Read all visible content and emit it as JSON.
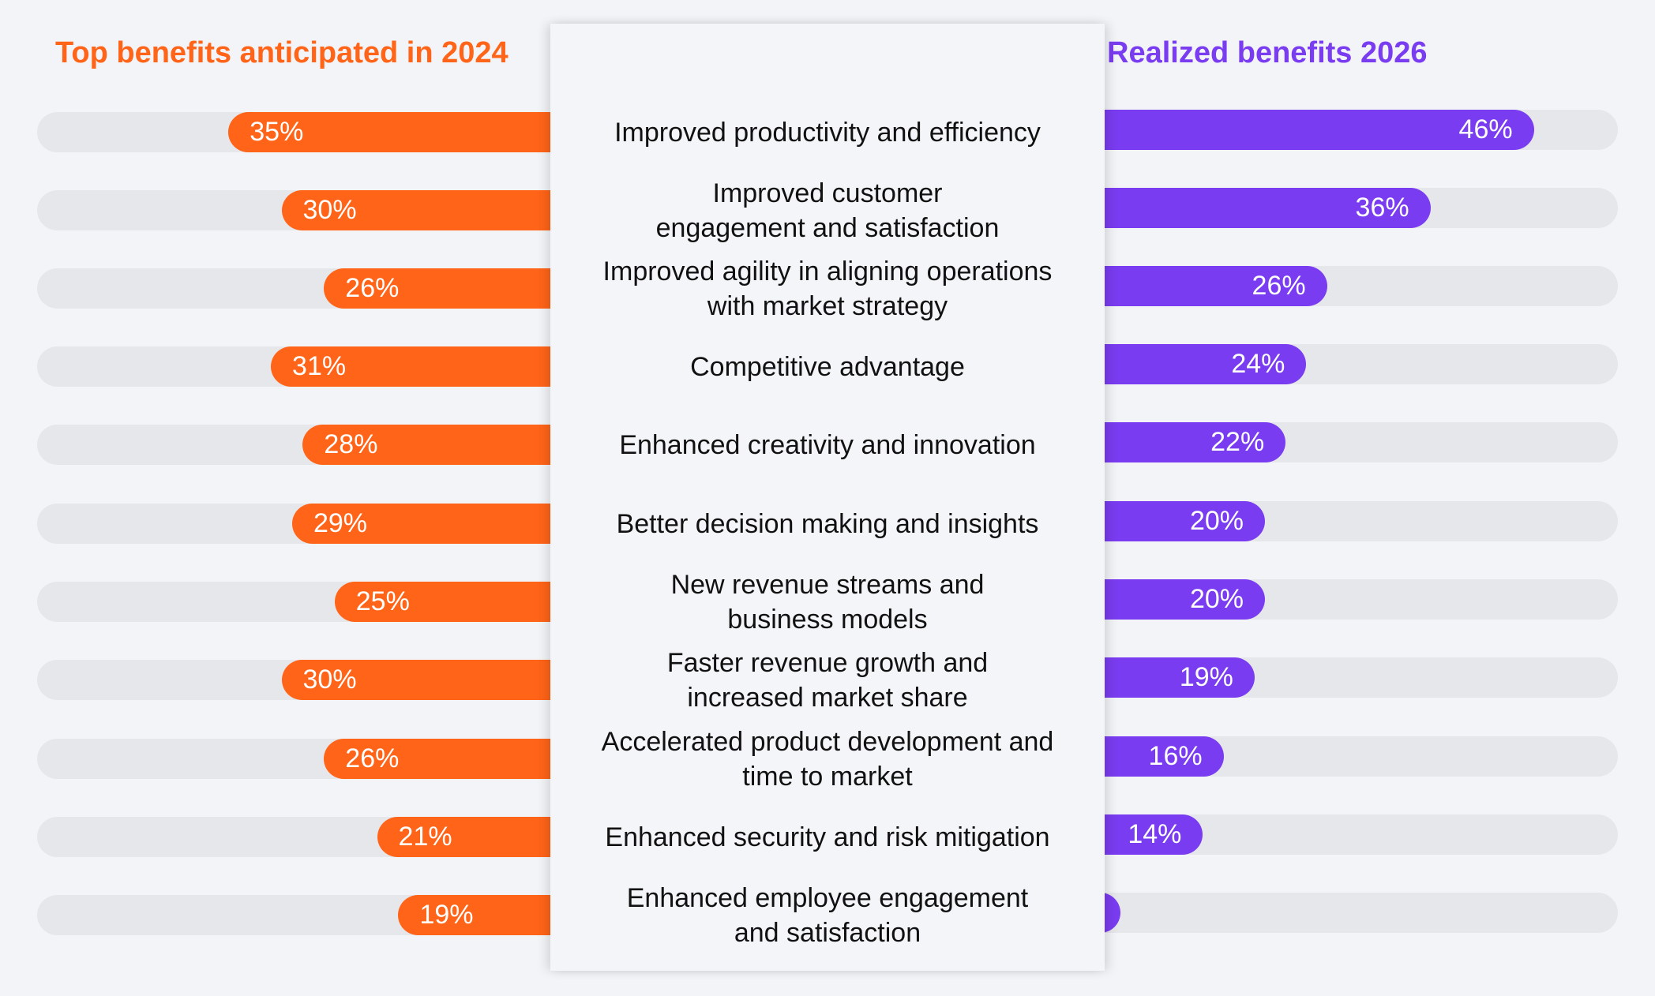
{
  "chart_data": {
    "type": "bar",
    "categories": [
      "Improved productivity and efficiency",
      "Improved customer\nengagement and satisfaction",
      "Improved agility in aligning operations\nwith market strategy",
      "Competitive advantage",
      "Enhanced creativity and innovation",
      "Better decision making and insights",
      "New revenue streams and\nbusiness models",
      "Faster revenue growth and\nincreased market share",
      "Accelerated product development and\ntime to market",
      "Enhanced security and risk mitigation",
      "Enhanced employee engagement\nand satisfaction"
    ],
    "series": [
      {
        "name": "Top benefits anticipated in 2024",
        "color": "#ff6418",
        "values": [
          35,
          30,
          26,
          31,
          28,
          29,
          25,
          30,
          26,
          21,
          19
        ],
        "labels": [
          "35%",
          "30%",
          "26%",
          "31%",
          "28%",
          "29%",
          "25%",
          "30%",
          "26%",
          "21%",
          "19%"
        ]
      },
      {
        "name": "Realized benefits 2026",
        "color": "#7a3cf0",
        "values": [
          46,
          36,
          26,
          24,
          22,
          20,
          20,
          19,
          16,
          14,
          6
        ],
        "labels": [
          "46%",
          "36%",
          "26%",
          "24%",
          "22%",
          "20%",
          "20%",
          "19%",
          "16%",
          "14%",
          "6%"
        ]
      }
    ],
    "track_color": "#e6e7ea"
  }
}
